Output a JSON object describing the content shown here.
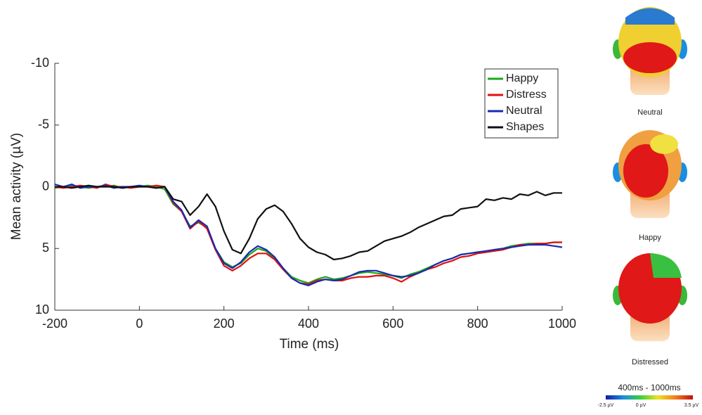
{
  "chart_data": {
    "type": "line",
    "x_label": "Time (ms)",
    "y_label": "Mean activity (µV)",
    "x": [
      -200,
      -180,
      -160,
      -140,
      -120,
      -100,
      -80,
      -60,
      -40,
      -20,
      0,
      20,
      40,
      60,
      80,
      100,
      120,
      140,
      160,
      180,
      200,
      220,
      240,
      260,
      280,
      300,
      320,
      340,
      360,
      380,
      400,
      420,
      440,
      460,
      480,
      500,
      520,
      540,
      560,
      580,
      600,
      620,
      640,
      660,
      680,
      700,
      720,
      740,
      760,
      780,
      800,
      820,
      840,
      860,
      880,
      900,
      920,
      940,
      960,
      980,
      1000
    ],
    "series": [
      {
        "name": "Happy",
        "color": "#1aa81a",
        "values": [
          0.1,
          0,
          -0.1,
          0,
          0.1,
          0,
          0,
          -0.1,
          0.1,
          0,
          0,
          -0.1,
          0,
          0.2,
          1.4,
          2.0,
          3.2,
          2.9,
          3.3,
          5.0,
          6.1,
          6.5,
          6.2,
          5.5,
          5.0,
          5.2,
          5.8,
          6.6,
          7.3,
          7.6,
          7.8,
          7.5,
          7.3,
          7.5,
          7.4,
          7.2,
          7.0,
          6.9,
          7.0,
          7.1,
          7.2,
          7.4,
          7.1,
          6.9,
          6.6,
          6.3,
          6.0,
          5.8,
          5.5,
          5.4,
          5.3,
          5.3,
          5.1,
          5.0,
          4.8,
          4.7,
          4.6,
          4.6,
          4.6,
          4.5,
          4.5
        ]
      },
      {
        "name": "Distress",
        "color": "#e01010",
        "values": [
          0,
          0.1,
          0,
          -0.1,
          0,
          0.1,
          -0.2,
          0,
          0,
          0.1,
          0,
          0,
          -0.1,
          0,
          1.3,
          2.0,
          3.4,
          2.8,
          3.4,
          5.1,
          6.4,
          6.8,
          6.4,
          5.8,
          5.4,
          5.4,
          5.9,
          6.7,
          7.4,
          7.8,
          7.9,
          7.6,
          7.5,
          7.6,
          7.6,
          7.4,
          7.3,
          7.3,
          7.2,
          7.2,
          7.4,
          7.7,
          7.3,
          7.0,
          6.7,
          6.5,
          6.2,
          6.0,
          5.7,
          5.6,
          5.4,
          5.3,
          5.2,
          5.1,
          4.9,
          4.7,
          4.7,
          4.6,
          4.6,
          4.5,
          4.5
        ]
      },
      {
        "name": "Neutral",
        "color": "#1a2ab0",
        "values": [
          -0.2,
          0,
          -0.2,
          0.1,
          0,
          0,
          -0.1,
          0.1,
          0,
          0,
          -0.1,
          0,
          0.1,
          0,
          1.2,
          1.9,
          3.3,
          2.7,
          3.2,
          5.0,
          6.2,
          6.6,
          6.1,
          5.3,
          4.8,
          5.1,
          5.7,
          6.6,
          7.4,
          7.8,
          8.0,
          7.7,
          7.5,
          7.6,
          7.5,
          7.2,
          6.9,
          6.8,
          6.8,
          7.0,
          7.2,
          7.3,
          7.2,
          7.0,
          6.7,
          6.3,
          6.0,
          5.8,
          5.5,
          5.4,
          5.3,
          5.2,
          5.1,
          5.0,
          4.9,
          4.8,
          4.7,
          4.7,
          4.7,
          4.8,
          4.9
        ]
      },
      {
        "name": "Shapes",
        "color": "#111111",
        "values": [
          0,
          0,
          0.1,
          0,
          -0.1,
          0,
          0,
          0,
          0.1,
          0,
          0,
          0,
          0.1,
          0,
          1.0,
          1.2,
          2.3,
          1.6,
          0.6,
          1.6,
          3.6,
          5.1,
          5.4,
          4.2,
          2.6,
          1.8,
          1.5,
          2.0,
          3.0,
          4.2,
          4.9,
          5.3,
          5.5,
          5.9,
          5.8,
          5.6,
          5.3,
          5.2,
          4.8,
          4.4,
          4.2,
          4.0,
          3.7,
          3.3,
          3.0,
          2.7,
          2.4,
          2.3,
          1.8,
          1.7,
          1.6,
          1.0,
          1.1,
          0.9,
          1.0,
          0.6,
          0.7,
          0.4,
          0.7,
          0.5,
          0.5
        ]
      }
    ],
    "xlim": [
      -200,
      1000
    ],
    "xticks": [
      -200,
      0,
      200,
      400,
      600,
      800,
      1000
    ],
    "ylim": [
      -10,
      10
    ],
    "yticks": [
      -10,
      -5,
      0,
      5,
      10
    ],
    "y_inverted": true,
    "grid": false,
    "legend": "upper right"
  },
  "topomaps": {
    "labels": [
      "Neutral",
      "Happy",
      "Distressed"
    ],
    "colorbar": {
      "title": "400ms - 1000ms",
      "labels": [
        "-2.5 µV",
        "0 µV",
        "3.5 µV"
      ]
    }
  }
}
